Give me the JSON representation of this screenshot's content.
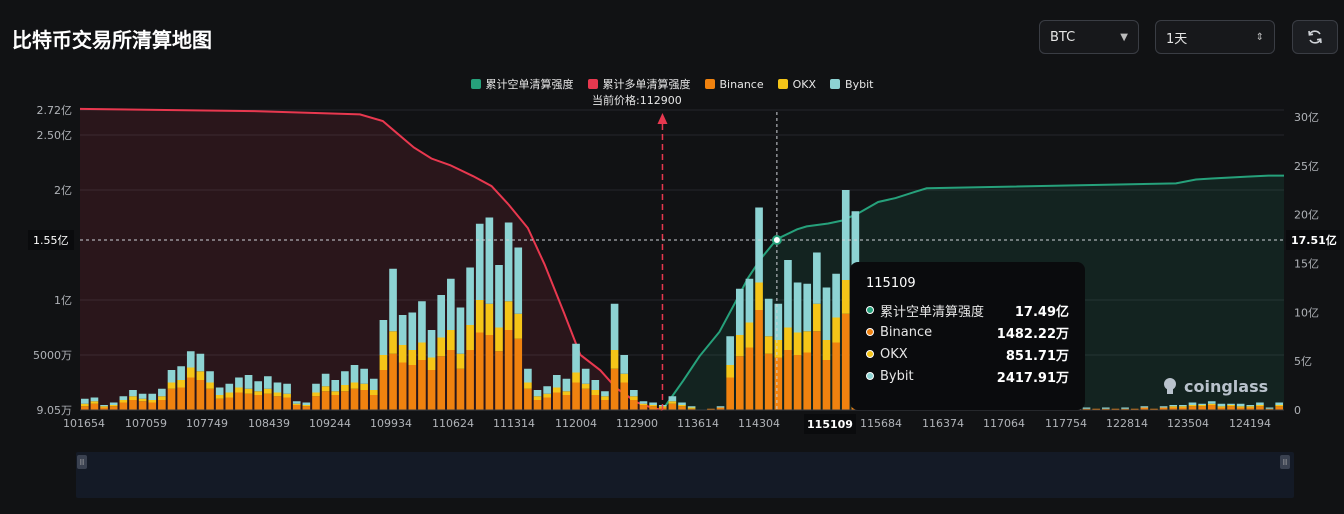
{
  "title": "比特币交易所清算地图",
  "controls": {
    "coin": "BTC",
    "period": "1天"
  },
  "legend": [
    {
      "label": "累计空单清算强度",
      "color": "#26a17b"
    },
    {
      "label": "累计多单清算强度",
      "color": "#e8384f"
    },
    {
      "label": "Binance",
      "color": "#f0820f"
    },
    {
      "label": "OKX",
      "color": "#f5c518"
    },
    {
      "label": "Bybit",
      "color": "#8dd3d3"
    }
  ],
  "current_price_label": "当前价格:112900",
  "tooltip": {
    "price": "115109",
    "rows": [
      {
        "label": "累计空单清算强度",
        "value": "17.49亿",
        "color": "#26a17b"
      },
      {
        "label": "Binance",
        "value": "1482.22万",
        "color": "#f0820f"
      },
      {
        "label": "OKX",
        "value": "851.71万",
        "color": "#f5c518"
      },
      {
        "label": "Bybit",
        "value": "2417.91万",
        "color": "#8dd3d3"
      }
    ]
  },
  "watermark": "coinglass",
  "chart_data": {
    "type": "bar",
    "x_labels": [
      "101654",
      "107059",
      "107749",
      "108439",
      "109244",
      "109934",
      "110624",
      "111314",
      "112004",
      "112900",
      "113614",
      "114304",
      "115109",
      "115684",
      "116374",
      "117064",
      "117754",
      "122814",
      "123504",
      "124194"
    ],
    "left_axis": {
      "ticks": [
        "2.72亿",
        "2.50亿",
        "2亿",
        "1.55亿",
        "1亿",
        "5000万",
        "9.05万"
      ],
      "values": [
        272000000,
        250000000,
        200000000,
        155000000,
        100000000,
        50000000,
        90500
      ]
    },
    "right_axis": {
      "ticks": [
        "30亿",
        "25亿",
        "20亿",
        "15亿",
        "10亿",
        "5亿",
        "0"
      ],
      "values": [
        30,
        25,
        20,
        15,
        10,
        5,
        0
      ]
    },
    "crosshair": {
      "left_value": "1.55亿",
      "right_value": "17.51亿",
      "x_value": "115109"
    },
    "current_price": 112900,
    "series_stack": [
      "Binance",
      "OKX",
      "Bybit"
    ],
    "bars": [
      [
        3,
        2,
        4
      ],
      [
        5,
        2,
        3
      ],
      [
        2,
        1,
        1
      ],
      [
        3,
        1,
        2
      ],
      [
        6,
        2,
        3
      ],
      [
        8,
        3,
        5
      ],
      [
        7,
        2,
        4
      ],
      [
        6,
        2,
        5
      ],
      [
        8,
        3,
        6
      ],
      [
        17,
        5,
        10
      ],
      [
        18,
        6,
        11
      ],
      [
        26,
        8,
        13
      ],
      [
        24,
        7,
        14
      ],
      [
        17,
        5,
        9
      ],
      [
        9,
        3,
        6
      ],
      [
        10,
        4,
        7
      ],
      [
        14,
        4,
        8
      ],
      [
        13,
        4,
        11
      ],
      [
        12,
        3,
        8
      ],
      [
        13,
        4,
        10
      ],
      [
        11,
        3,
        8
      ],
      [
        10,
        3,
        8
      ],
      [
        4,
        1,
        2
      ],
      [
        3,
        1,
        2
      ],
      [
        11,
        3,
        7
      ],
      [
        15,
        4,
        10
      ],
      [
        12,
        3,
        9
      ],
      [
        15,
        5,
        11
      ],
      [
        17,
        5,
        14
      ],
      [
        16,
        5,
        12
      ],
      [
        12,
        4,
        9
      ],
      [
        32,
        12,
        28
      ],
      [
        45,
        18,
        50
      ],
      [
        38,
        14,
        24
      ],
      [
        36,
        12,
        30
      ],
      [
        40,
        14,
        33
      ],
      [
        32,
        10,
        22
      ],
      [
        43,
        15,
        34
      ],
      [
        48,
        16,
        41
      ],
      [
        33,
        12,
        37
      ],
      [
        48,
        20,
        46
      ],
      [
        62,
        26,
        61
      ],
      [
        60,
        25,
        69
      ],
      [
        47,
        19,
        50
      ],
      [
        64,
        23,
        63
      ],
      [
        57,
        20,
        53
      ],
      [
        17,
        5,
        11
      ],
      [
        8,
        3,
        5
      ],
      [
        10,
        3,
        6
      ],
      [
        14,
        4,
        10
      ],
      [
        12,
        3,
        10
      ],
      [
        22,
        8,
        23
      ],
      [
        17,
        4,
        12
      ],
      [
        12,
        4,
        8
      ],
      [
        8,
        3,
        4
      ],
      [
        33,
        15,
        37
      ],
      [
        22,
        7,
        15
      ],
      [
        8,
        3,
        5
      ],
      [
        4,
        1,
        2
      ],
      [
        3,
        1,
        2
      ],
      [
        2,
        1,
        1
      ],
      [
        5,
        2,
        4
      ],
      [
        3,
        1,
        2
      ],
      [
        1,
        1,
        1
      ],
      [
        0,
        0,
        0
      ],
      [
        1,
        0,
        0
      ],
      [
        2,
        0,
        1
      ],
      [
        26,
        10,
        23
      ],
      [
        43,
        17,
        37
      ],
      [
        50,
        20,
        35
      ],
      [
        80,
        22,
        60
      ],
      [
        45,
        14,
        30
      ],
      [
        42,
        14,
        29
      ],
      [
        48,
        18,
        54
      ],
      [
        44,
        18,
        40
      ],
      [
        46,
        17,
        38
      ],
      [
        63,
        22,
        41
      ],
      [
        40,
        16,
        42
      ],
      [
        54,
        20,
        35
      ],
      [
        77,
        27,
        72
      ],
      [
        67,
        26,
        66
      ],
      [
        41,
        14,
        24
      ],
      [
        34,
        12,
        22
      ],
      [
        24,
        9,
        18
      ],
      [
        15,
        5,
        11
      ],
      [
        9,
        3,
        7
      ],
      [
        12,
        4,
        8
      ],
      [
        20,
        7,
        14
      ],
      [
        15,
        4,
        10
      ],
      [
        22,
        7,
        13
      ],
      [
        15,
        5,
        10
      ],
      [
        17,
        6,
        12
      ],
      [
        14,
        5,
        11
      ],
      [
        7,
        2,
        5
      ],
      [
        5,
        2,
        3
      ],
      [
        4,
        1,
        3
      ],
      [
        3,
        1,
        2
      ],
      [
        2,
        1,
        1
      ],
      [
        1,
        0,
        1
      ],
      [
        1,
        0,
        1
      ],
      [
        1,
        0,
        1
      ],
      [
        1,
        0,
        0
      ],
      [
        1,
        0,
        1
      ],
      [
        1,
        0,
        0
      ],
      [
        1,
        0,
        1
      ],
      [
        1,
        0,
        0
      ],
      [
        1,
        0,
        1
      ],
      [
        1,
        0,
        0
      ],
      [
        1,
        0,
        1
      ],
      [
        1,
        0,
        0
      ],
      [
        2,
        0,
        1
      ],
      [
        1,
        0,
        0
      ],
      [
        2,
        0,
        1
      ],
      [
        2,
        1,
        1
      ],
      [
        2,
        1,
        1
      ],
      [
        3,
        1,
        2
      ],
      [
        3,
        1,
        1
      ],
      [
        4,
        1,
        2
      ],
      [
        2,
        1,
        2
      ],
      [
        3,
        1,
        1
      ],
      [
        2,
        1,
        2
      ],
      [
        2,
        1,
        1
      ],
      [
        3,
        1,
        2
      ],
      [
        1,
        0,
        1
      ],
      [
        3,
        1,
        2
      ]
    ],
    "short_cumulative": [
      [
        112900,
        0
      ],
      [
        113300,
        3
      ],
      [
        113614,
        5.5
      ],
      [
        114000,
        8
      ],
      [
        114304,
        11
      ],
      [
        114550,
        13.5
      ],
      [
        114800,
        15.5
      ],
      [
        115109,
        17.5
      ],
      [
        115500,
        18.5
      ],
      [
        115684,
        18.8
      ],
      [
        116100,
        19.1
      ],
      [
        116374,
        19.4
      ],
      [
        116700,
        20.2
      ],
      [
        117064,
        21.3
      ],
      [
        117400,
        21.7
      ],
      [
        117754,
        22.3
      ],
      [
        118000,
        22.7
      ],
      [
        122814,
        23.2
      ],
      [
        123200,
        23.6
      ],
      [
        123504,
        23.7
      ],
      [
        124194,
        23.9
      ],
      [
        124600,
        24.0
      ],
      [
        124900,
        24.0
      ]
    ],
    "long_cumulative": [
      [
        101654,
        273
      ],
      [
        105000,
        271
      ],
      [
        107059,
        268
      ],
      [
        107500,
        262
      ],
      [
        107749,
        252
      ],
      [
        108100,
        238
      ],
      [
        108439,
        228
      ],
      [
        108800,
        222
      ],
      [
        109244,
        212
      ],
      [
        109600,
        203
      ],
      [
        109934,
        186
      ],
      [
        110300,
        165
      ],
      [
        110624,
        132
      ],
      [
        111000,
        88
      ],
      [
        111314,
        50
      ],
      [
        111700,
        36
      ],
      [
        112004,
        20
      ],
      [
        112400,
        7
      ],
      [
        112700,
        2
      ],
      [
        112900,
        0
      ]
    ]
  }
}
